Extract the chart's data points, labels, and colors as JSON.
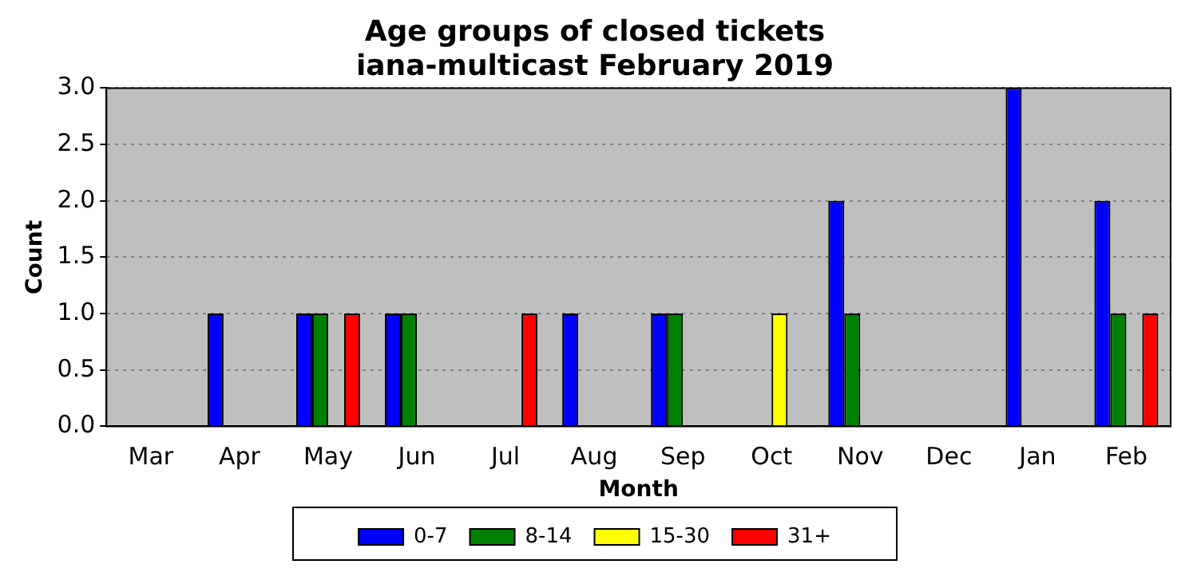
{
  "chart_data": {
    "type": "bar",
    "title": "Age groups of closed tickets",
    "subtitle": "iana-multicast February 2019",
    "xlabel": "Month",
    "ylabel": "Count",
    "categories": [
      "Mar",
      "Apr",
      "May",
      "Jun",
      "Jul",
      "Aug",
      "Sep",
      "Oct",
      "Nov",
      "Dec",
      "Jan",
      "Feb"
    ],
    "series": [
      {
        "name": "0-7",
        "color": "#0000ff",
        "values": [
          0,
          1,
          1,
          1,
          0,
          1,
          1,
          0,
          2,
          0,
          3,
          2
        ]
      },
      {
        "name": "8-14",
        "color": "#008000",
        "values": [
          0,
          0,
          1,
          1,
          0,
          0,
          1,
          0,
          1,
          0,
          0,
          1
        ]
      },
      {
        "name": "15-30",
        "color": "#ffff00",
        "values": [
          0,
          0,
          0,
          0,
          0,
          0,
          0,
          1,
          0,
          0,
          0,
          0
        ]
      },
      {
        "name": "31+",
        "color": "#ff0000",
        "values": [
          0,
          0,
          1,
          0,
          1,
          0,
          0,
          0,
          0,
          0,
          0,
          1
        ]
      }
    ],
    "ylim": [
      0,
      3
    ],
    "yticks": [
      {
        "value": 0,
        "label": "0.0"
      },
      {
        "value": 0.5,
        "label": "0.5"
      },
      {
        "value": 1,
        "label": "1.0"
      },
      {
        "value": 1.5,
        "label": "1.5"
      },
      {
        "value": 2,
        "label": "2.0"
      },
      {
        "value": 2.5,
        "label": "2.5"
      },
      {
        "value": 3,
        "label": "3.0"
      }
    ],
    "grid": "y",
    "legend": "bottom"
  }
}
